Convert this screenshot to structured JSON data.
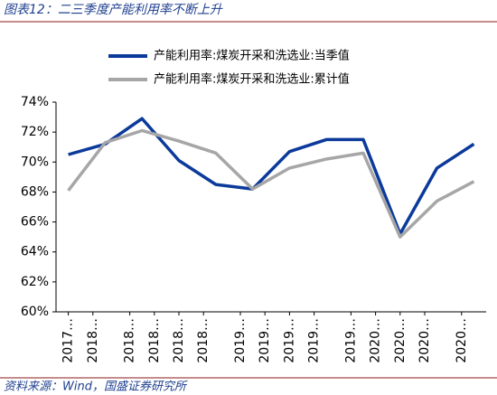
{
  "chart_data": {
    "type": "line",
    "title": "图表12：二三季度产能利用率不断上升",
    "source": "资料来源：Wind，国盛证券研究所",
    "x": [
      "2017-12",
      "2018-03",
      "2018-06",
      "2018-09",
      "2018-12",
      "2019-03",
      "2019-06",
      "2019-09",
      "2019-12",
      "2020-03",
      "2020-06",
      "2020-09"
    ],
    "series": [
      {
        "name": "产能利用率:煤炭开采和洗选业:当季值",
        "color": "#0b3a9b",
        "values": [
          70.5,
          71.2,
          72.9,
          70.1,
          68.5,
          68.2,
          70.7,
          71.5,
          71.5,
          65.2,
          69.6,
          71.2
        ]
      },
      {
        "name": "产能利用率:煤炭开采和洗选业:累计值",
        "color": "#a6a6a6",
        "values": [
          68.1,
          71.3,
          72.1,
          71.4,
          70.6,
          68.2,
          69.6,
          70.2,
          70.6,
          65.0,
          67.4,
          68.7
        ]
      }
    ],
    "xlim": [
      "2017-11",
      "2020-10"
    ],
    "xticks": [
      {
        "value": "2017-12",
        "label": "2017…"
      },
      {
        "value": "2018-02",
        "label": "2018…"
      },
      {
        "value": "2018-05",
        "label": "2018…"
      },
      {
        "value": "2018-07",
        "label": "2018…"
      },
      {
        "value": "2018-09",
        "label": "2018…"
      },
      {
        "value": "2018-11",
        "label": "2018…"
      },
      {
        "value": "2019-02",
        "label": "2019…"
      },
      {
        "value": "2019-04",
        "label": "2019…"
      },
      {
        "value": "2019-06",
        "label": "2019…"
      },
      {
        "value": "2019-08",
        "label": "2019…"
      },
      {
        "value": "2019-11",
        "label": "2019…"
      },
      {
        "value": "2020-01",
        "label": "2020…"
      },
      {
        "value": "2020-03",
        "label": "2020…"
      },
      {
        "value": "2020-05",
        "label": "2020…"
      },
      {
        "value": "2020-08",
        "label": "2020…"
      }
    ],
    "ylim": [
      60,
      74
    ],
    "yticks": [
      {
        "value": 60,
        "label": "60%"
      },
      {
        "value": 62,
        "label": "62%"
      },
      {
        "value": 64,
        "label": "64%"
      },
      {
        "value": 66,
        "label": "66%"
      },
      {
        "value": 68,
        "label": "68%"
      },
      {
        "value": 70,
        "label": "70%"
      },
      {
        "value": 72,
        "label": "72%"
      },
      {
        "value": 74,
        "label": "74%"
      }
    ],
    "legend": "top"
  }
}
